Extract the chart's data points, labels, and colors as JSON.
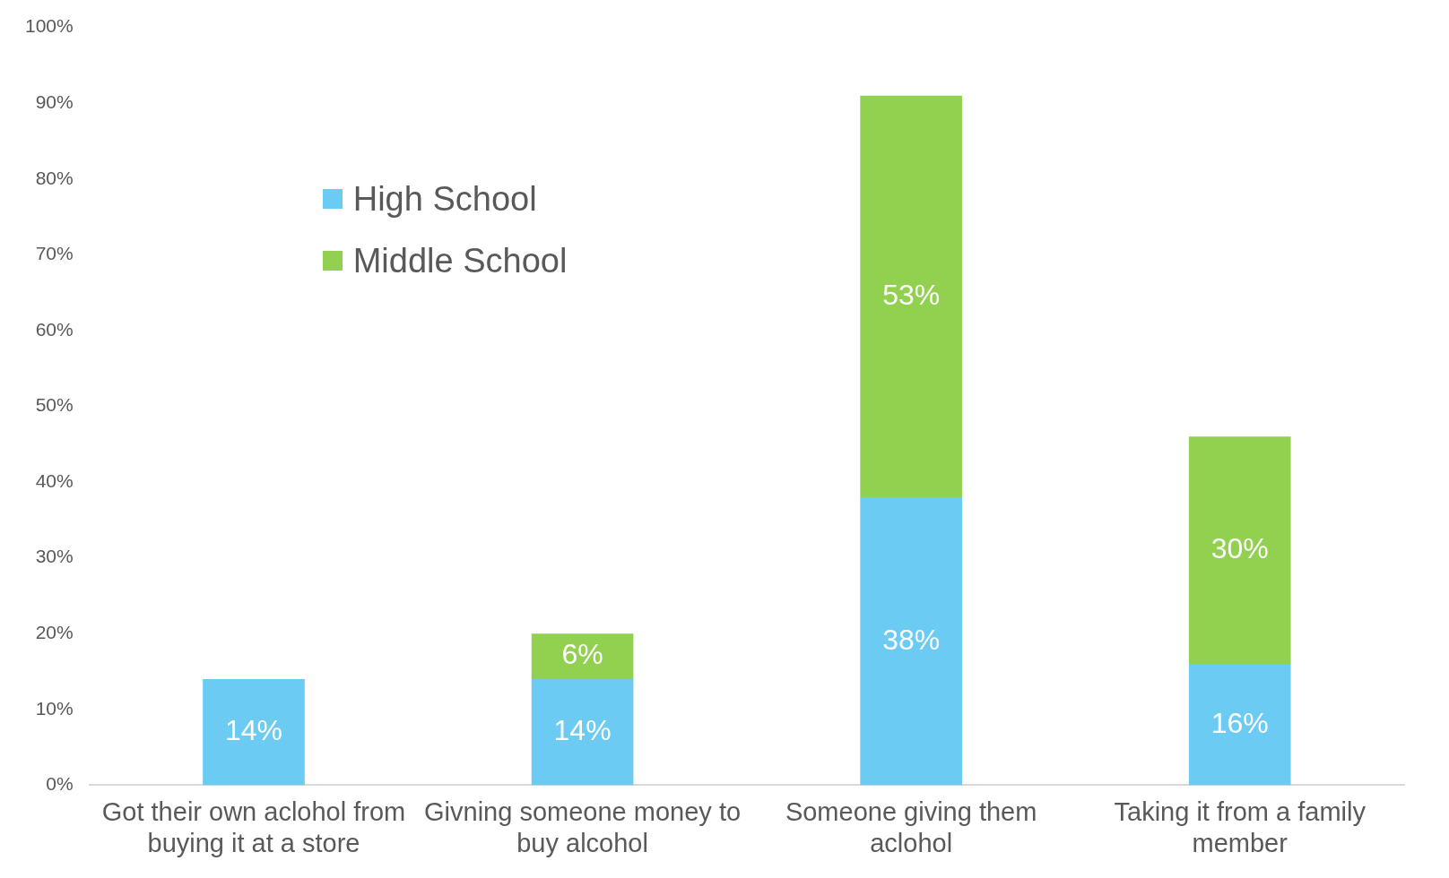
{
  "chart_data": {
    "type": "bar",
    "stacked": true,
    "categories": [
      "Got their own aclohol from buying it at a store",
      "Givning someone money to buy alcohol",
      "Someone giving them aclohol",
      "Taking it from a family member"
    ],
    "series": [
      {
        "name": "High School",
        "color": "#6bcbf2",
        "values": [
          14,
          14,
          38,
          16
        ],
        "value_labels": [
          "14%",
          "14%",
          "38%",
          "16%"
        ]
      },
      {
        "name": "Middle School",
        "color": "#92d050",
        "values": [
          null,
          6,
          53,
          30
        ],
        "value_labels": [
          null,
          "6%",
          "53%",
          "30%"
        ]
      }
    ],
    "ylim": [
      0,
      100
    ],
    "yticks": [
      {
        "value": 0,
        "label": "0%"
      },
      {
        "value": 10,
        "label": "10%"
      },
      {
        "value": 20,
        "label": "20%"
      },
      {
        "value": 30,
        "label": "30%"
      },
      {
        "value": 40,
        "label": "40%"
      },
      {
        "value": 50,
        "label": "50%"
      },
      {
        "value": 60,
        "label": "60%"
      },
      {
        "value": 70,
        "label": "70%"
      },
      {
        "value": 80,
        "label": "80%"
      },
      {
        "value": 90,
        "label": "90%"
      },
      {
        "value": 100,
        "label": "100%"
      }
    ],
    "grid": false,
    "legend": "top left"
  }
}
